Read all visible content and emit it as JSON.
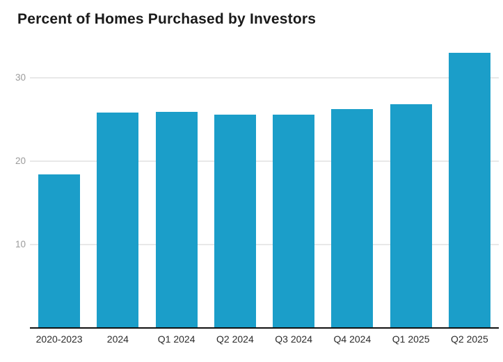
{
  "chart_data": {
    "type": "bar",
    "title": "Percent of Homes Purchased by Investors",
    "categories": [
      "2020-2023",
      "2024",
      "Q1 2024",
      "Q2 2024",
      "Q3 2024",
      "Q4 2024",
      "Q1 2025",
      "Q2 2025"
    ],
    "values": [
      18.4,
      25.8,
      25.9,
      25.6,
      25.6,
      26.2,
      26.8,
      33.0
    ],
    "xlabel": "",
    "ylabel": "",
    "yticks": [
      10,
      20,
      30
    ],
    "ylim": [
      0,
      34.3
    ],
    "grid": true,
    "legend": "none",
    "colors": {
      "bar": "#1B9EC9",
      "axis_line": "#111111",
      "gridline": "#e8e8e8",
      "ytick_text": "#9b9b9b",
      "xtick_text": "#2b2b2b",
      "title_text": "#1a1a1a",
      "background": "#ffffff"
    }
  }
}
